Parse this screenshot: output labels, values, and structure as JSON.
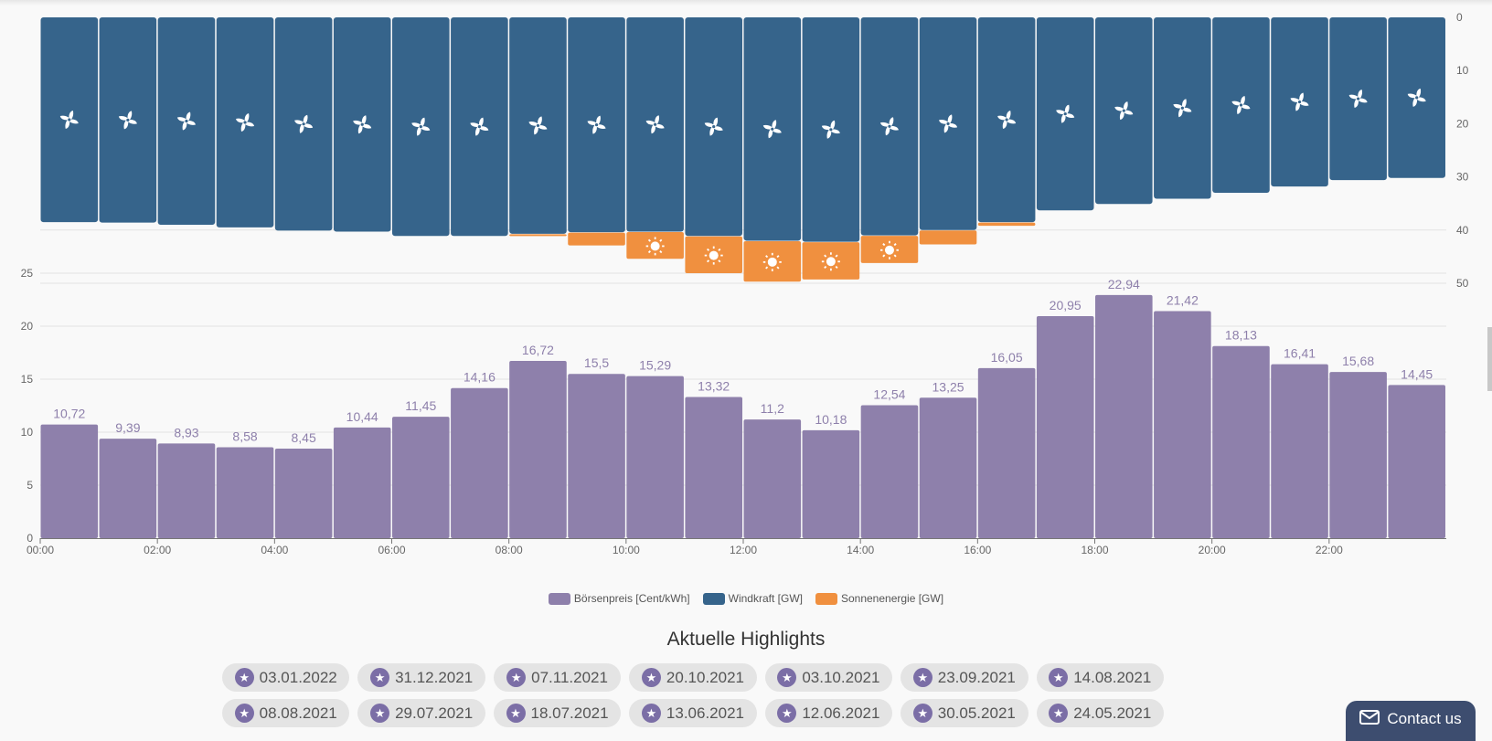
{
  "chart_data": {
    "type": "bar",
    "categories": [
      "00:00",
      "01:00",
      "02:00",
      "03:00",
      "04:00",
      "05:00",
      "06:00",
      "07:00",
      "08:00",
      "09:00",
      "10:00",
      "11:00",
      "12:00",
      "13:00",
      "14:00",
      "15:00",
      "16:00",
      "17:00",
      "18:00",
      "19:00",
      "20:00",
      "21:00",
      "22:00",
      "23:00"
    ],
    "x_tick_labels": [
      "00:00",
      "02:00",
      "04:00",
      "06:00",
      "08:00",
      "10:00",
      "12:00",
      "14:00",
      "16:00",
      "18:00",
      "20:00",
      "22:00"
    ],
    "series": [
      {
        "name": "Börsenpreis [Cent/kWh]",
        "axis": "left",
        "color": "#8e80ab",
        "values": [
          10.72,
          9.39,
          8.93,
          8.58,
          8.45,
          10.44,
          11.45,
          14.16,
          16.72,
          15.5,
          15.29,
          13.32,
          11.2,
          10.18,
          12.54,
          13.25,
          16.05,
          20.95,
          22.94,
          21.42,
          18.13,
          16.41,
          15.68,
          14.45
        ],
        "labels": [
          "10,72",
          "9,39",
          "8,93",
          "8,58",
          "8,45",
          "10,44",
          "11,45",
          "14,16",
          "16,72",
          "15,5",
          "15,29",
          "13,32",
          "11,2",
          "10,18",
          "12,54",
          "13,25",
          "16,05",
          "20,95",
          "22,94",
          "21,42",
          "18,13",
          "16,41",
          "15,68",
          "14,45"
        ]
      },
      {
        "name": "Windkraft [GW]",
        "axis": "right",
        "color": "#36648b",
        "values": [
          38.5,
          38.6,
          39,
          39.5,
          40.1,
          40.3,
          41.1,
          41.1,
          40.7,
          40.4,
          40.3,
          41.1,
          42,
          42.2,
          41,
          40,
          38.5,
          36.3,
          35.1,
          34.1,
          33,
          31.8,
          30.6,
          30.2
        ]
      },
      {
        "name": "Sonnenenergie [GW]",
        "axis": "right",
        "color": "#f0903f",
        "values": [
          0,
          0,
          0,
          0,
          0,
          0,
          0,
          0,
          0.4,
          2.5,
          5.1,
          7,
          7.7,
          7.1,
          5.2,
          2.7,
          0.7,
          0,
          0,
          0,
          0,
          0,
          0,
          0
        ]
      }
    ],
    "left_axis": {
      "ylim": [
        0,
        25
      ],
      "ticks": [
        "0",
        "5",
        "10",
        "15",
        "20",
        "25"
      ]
    },
    "right_axis": {
      "ylim": [
        0,
        50
      ],
      "ticks": [
        "0",
        "10",
        "20",
        "30",
        "40",
        "50"
      ],
      "inverted": true
    },
    "legend_position": "bottom-center"
  },
  "legend": [
    {
      "label": "Börsenpreis [Cent/kWh]",
      "color": "#8e80ab"
    },
    {
      "label": "Windkraft [GW]",
      "color": "#36648b"
    },
    {
      "label": "Sonnenenergie [GW]",
      "color": "#f0903f"
    }
  ],
  "highlights": {
    "title": "Aktuelle Highlights",
    "row1": [
      "03.01.2022",
      "31.12.2021",
      "07.11.2021",
      "20.10.2021",
      "03.10.2021",
      "23.09.2021",
      "14.08.2021"
    ],
    "row2": [
      "08.08.2021",
      "29.07.2021",
      "18.07.2021",
      "13.06.2021",
      "12.06.2021",
      "30.05.2021",
      "24.05.2021"
    ]
  },
  "contact": {
    "label": "Contact us"
  },
  "icons": {
    "chip": "star-icon",
    "contact": "mail-icon",
    "wind": "fan-icon",
    "sun": "sun-icon"
  }
}
